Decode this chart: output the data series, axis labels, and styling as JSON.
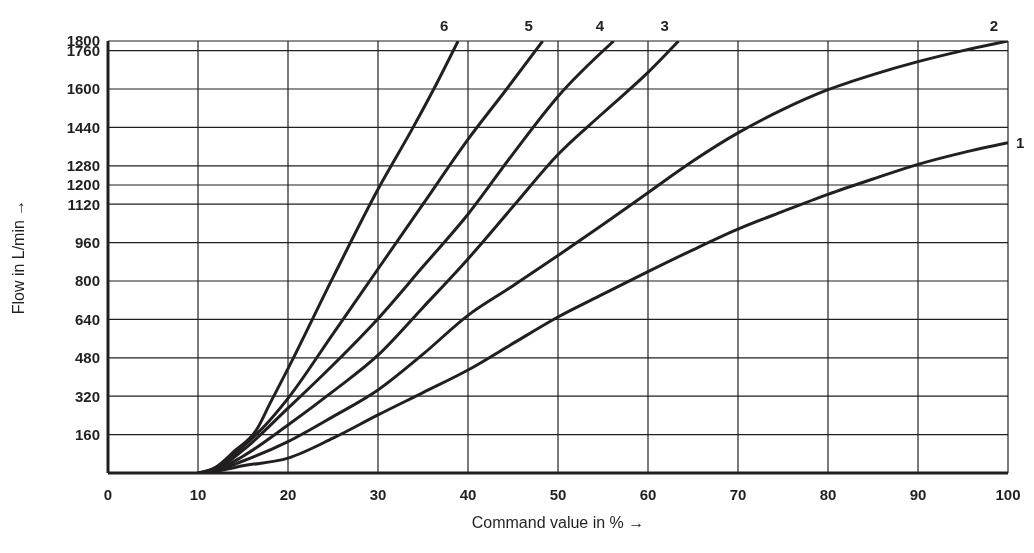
{
  "chart_data": {
    "type": "line",
    "xlabel": "Command value in % →",
    "ylabel": "Flow in L/min →",
    "xlim": [
      0,
      100
    ],
    "xticks": [
      0,
      10,
      20,
      30,
      40,
      50,
      60,
      70,
      80,
      90,
      100
    ],
    "ylim": [
      0,
      1800
    ],
    "yticks": [
      160,
      320,
      480,
      640,
      800,
      960,
      1120,
      1200,
      1280,
      1440,
      1600,
      1760,
      1800
    ],
    "grid": true,
    "marker": "none",
    "line_style": "solid",
    "series": [
      {
        "name": "1",
        "color": "#231f20",
        "x": [
          10,
          12,
          15,
          20,
          25,
          30,
          35,
          40,
          45,
          50,
          55,
          60,
          65,
          70,
          75,
          80,
          85,
          90,
          95,
          100
        ],
        "values": [
          0,
          8,
          30,
          62,
          145,
          242,
          335,
          429,
          540,
          650,
          745,
          839,
          930,
          1016,
          1090,
          1161,
          1225,
          1286,
          1335,
          1376
        ]
      },
      {
        "name": "2",
        "color": "#231f20",
        "x": [
          10,
          12,
          15,
          20,
          25,
          30,
          35,
          40,
          45,
          50,
          55,
          60,
          65,
          70,
          75,
          80,
          85,
          90,
          95,
          100
        ],
        "values": [
          0,
          10,
          50,
          131,
          235,
          346,
          495,
          657,
          780,
          906,
          1035,
          1168,
          1300,
          1417,
          1515,
          1597,
          1660,
          1714,
          1760,
          1800
        ]
      },
      {
        "name": "3",
        "color": "#231f20",
        "x": [
          10,
          12,
          15,
          20,
          25,
          30,
          35,
          40,
          45,
          50,
          55,
          60,
          63.4
        ],
        "values": [
          0,
          12,
          70,
          200,
          340,
          491,
          690,
          892,
          1110,
          1327,
          1500,
          1669,
          1800
        ]
      },
      {
        "name": "4",
        "color": "#231f20",
        "x": [
          10,
          12,
          15,
          20,
          25,
          30,
          35,
          40,
          45,
          50,
          56.2
        ],
        "values": [
          0,
          15,
          95,
          270,
          450,
          643,
          860,
          1078,
          1330,
          1569,
          1800
        ]
      },
      {
        "name": "5",
        "color": "#231f20",
        "x": [
          10,
          12,
          15,
          17.5,
          20,
          25,
          30,
          35,
          40,
          44.3,
          48.3
        ],
        "values": [
          0,
          20,
          110,
          200,
          311,
          580,
          850,
          1120,
          1390,
          1600,
          1800
        ]
      },
      {
        "name": "6",
        "color": "#231f20",
        "x": [
          10,
          12,
          14,
          16.5,
          18,
          20,
          25,
          30,
          33.9,
          36.2,
          38.9
        ],
        "values": [
          0,
          25,
          90,
          180,
          290,
          435,
          815,
          1182,
          1440,
          1600,
          1800
        ]
      }
    ]
  }
}
